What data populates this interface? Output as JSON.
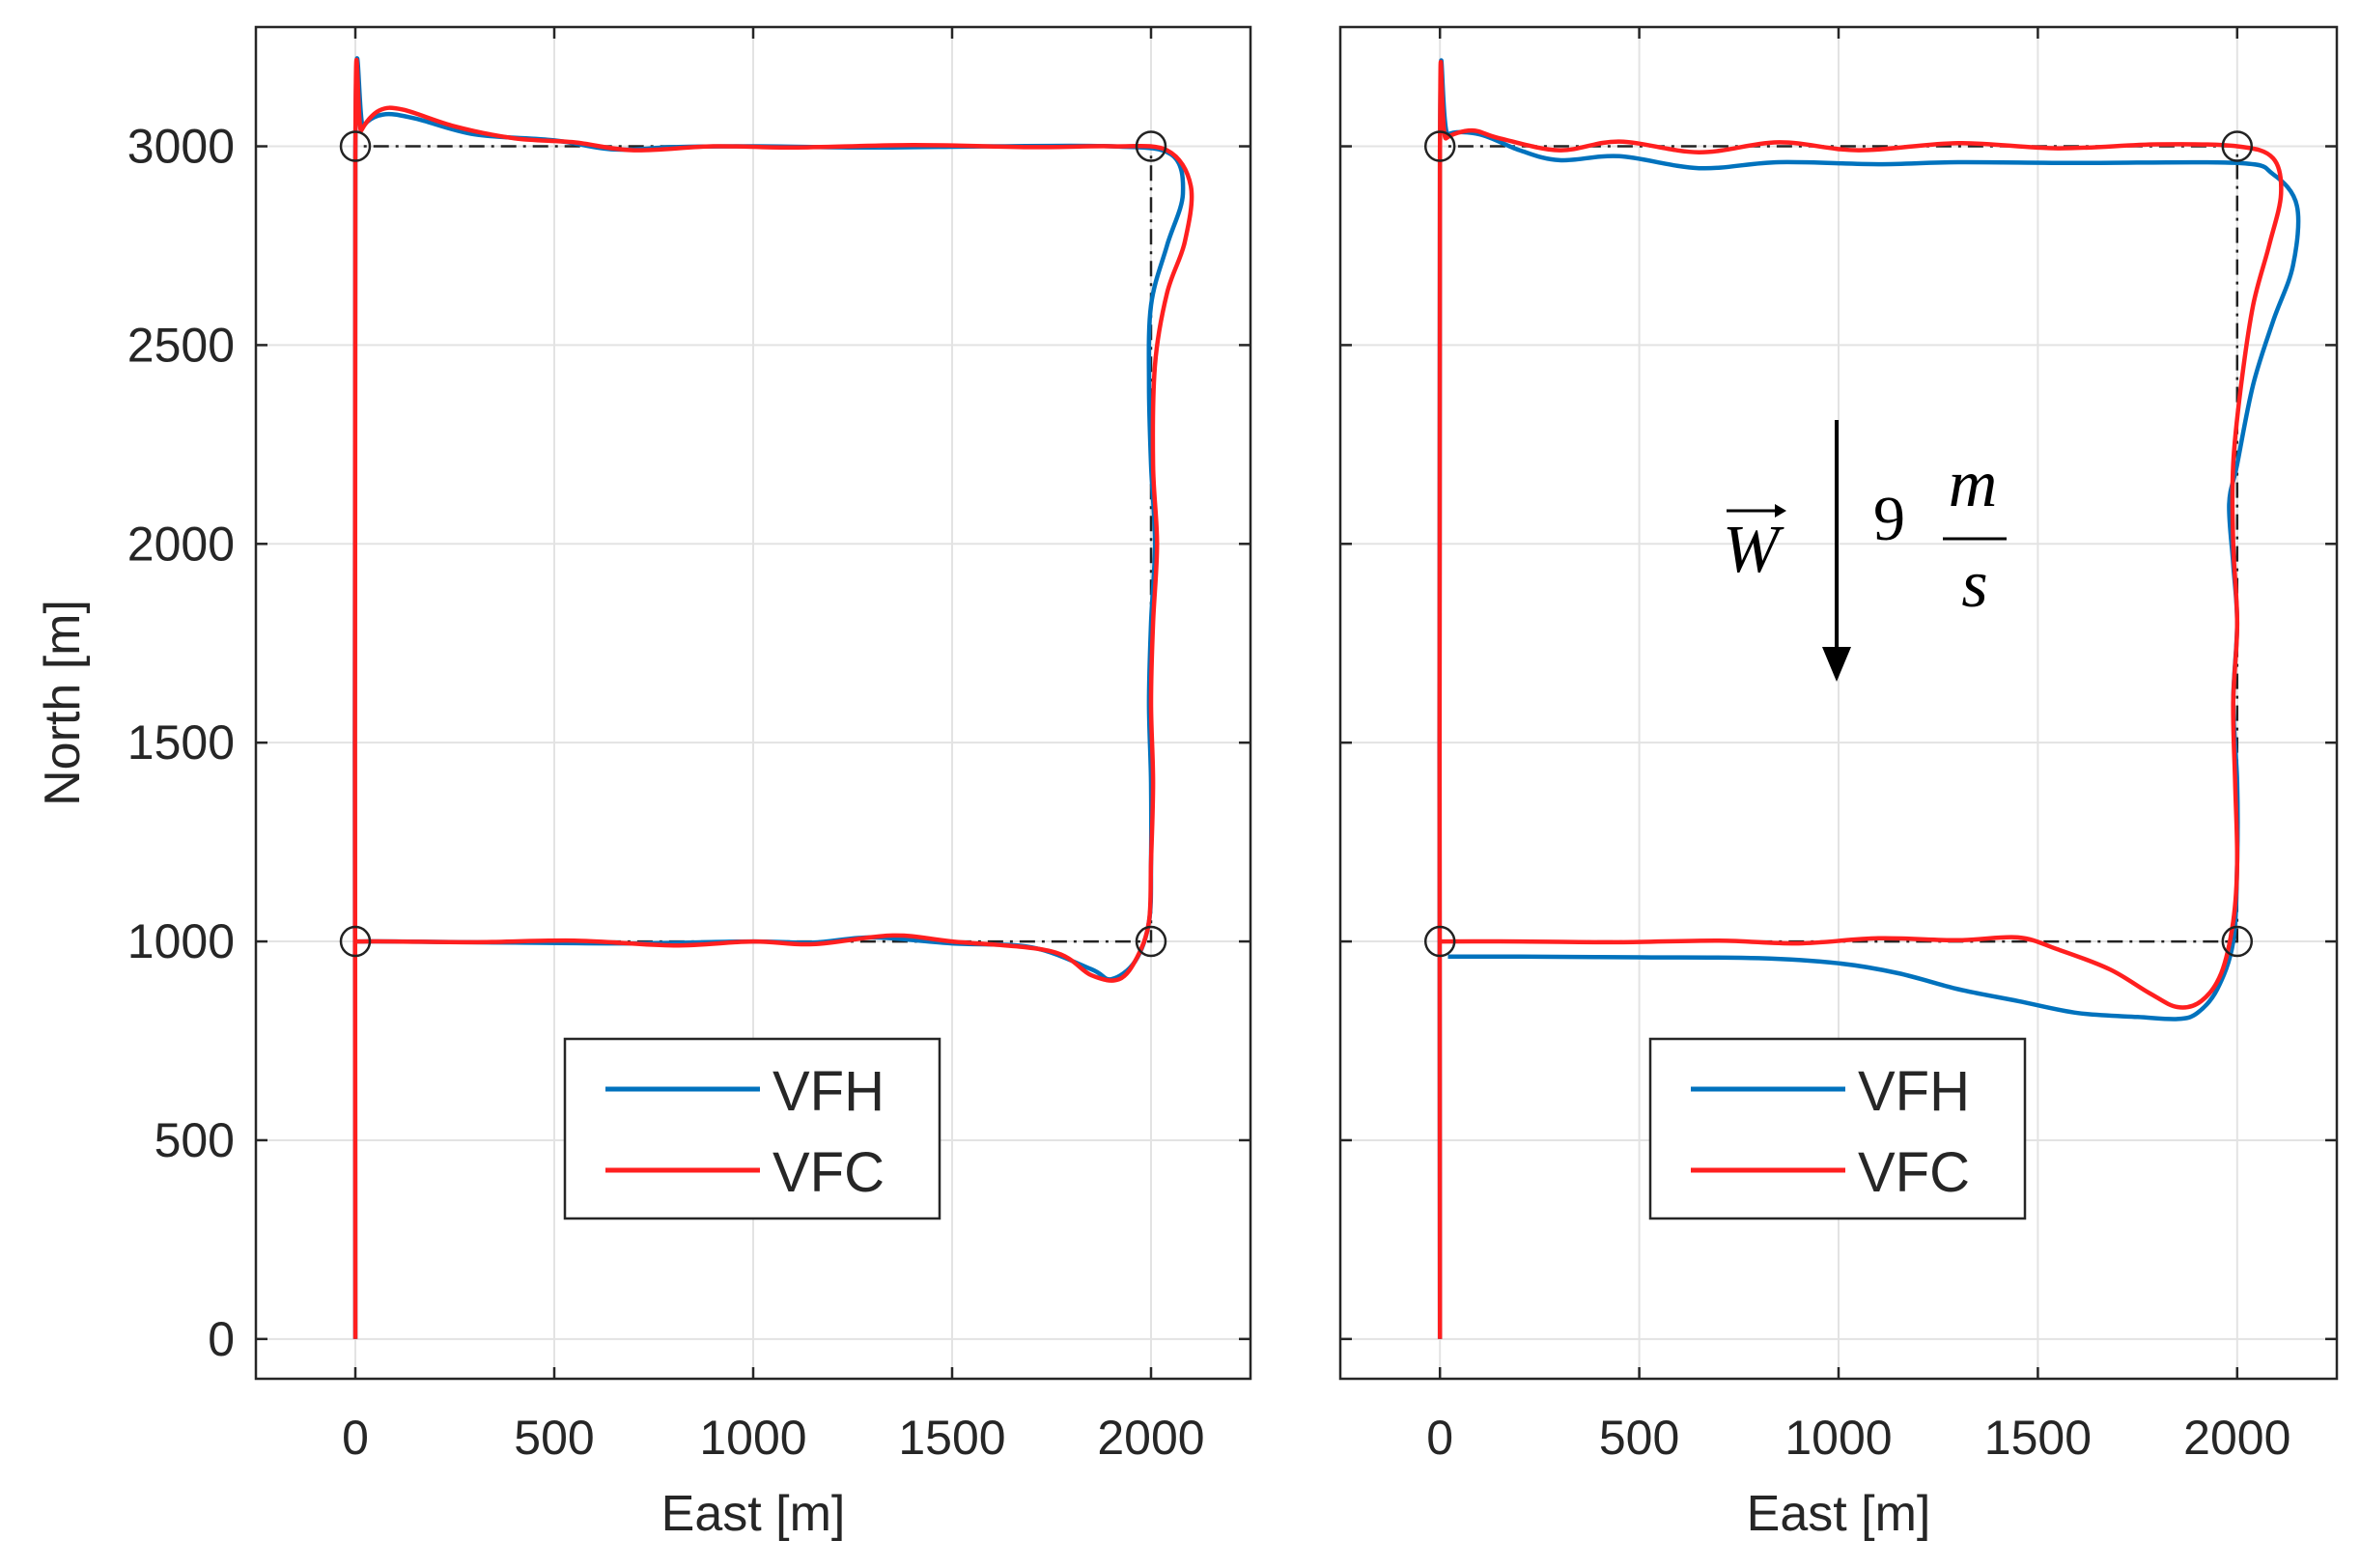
{
  "chart_data": [
    {
      "type": "line",
      "panel": "left",
      "xlabel": "East [m]",
      "ylabel": "North [m]",
      "xlim": [
        -250,
        2250
      ],
      "ylim": [
        -100,
        3300
      ],
      "xticks": [
        0,
        500,
        1000,
        1500,
        2000
      ],
      "xtick_labels": [
        "0",
        "500",
        "1000",
        "1500",
        "2000"
      ],
      "yticks": [
        0,
        500,
        1000,
        1500,
        2000,
        2500,
        3000
      ],
      "ytick_labels": [
        "0",
        "500",
        "1000",
        "1500",
        "2000",
        "2500",
        "3000"
      ],
      "grid": true,
      "legend": "bottom-center",
      "waypoints": [
        [
          0,
          1000
        ],
        [
          0,
          3000
        ],
        [
          2000,
          3000
        ],
        [
          2000,
          1000
        ]
      ],
      "reference_path": [
        [
          0,
          0
        ],
        [
          0,
          3000
        ],
        [
          2000,
          3000
        ],
        [
          2000,
          1000
        ],
        [
          0,
          1000
        ]
      ],
      "series": [
        {
          "name": "VFH",
          "color": "#0072BD",
          "points": [
            [
              0,
              0
            ],
            [
              0,
              2980
            ],
            [
              20,
              3050
            ],
            [
              70,
              3080
            ],
            [
              150,
              3070
            ],
            [
              300,
              3030
            ],
            [
              500,
              3015
            ],
            [
              650,
              2992
            ],
            [
              800,
              2998
            ],
            [
              1000,
              3000
            ],
            [
              1300,
              2997
            ],
            [
              1600,
              3000
            ],
            [
              1900,
              3000
            ],
            [
              2050,
              2980
            ],
            [
              2080,
              2880
            ],
            [
              2040,
              2750
            ],
            [
              2000,
              2600
            ],
            [
              1995,
              2400
            ],
            [
              2000,
              2200
            ],
            [
              2010,
              2000
            ],
            [
              2000,
              1800
            ],
            [
              1995,
              1600
            ],
            [
              2000,
              1400
            ],
            [
              2000,
              1200
            ],
            [
              1995,
              1050
            ],
            [
              1960,
              950
            ],
            [
              1900,
              905
            ],
            [
              1850,
              930
            ],
            [
              1700,
              985
            ],
            [
              1500,
              995
            ],
            [
              1300,
              1010
            ],
            [
              1150,
              997
            ],
            [
              1000,
              1000
            ],
            [
              700,
              995
            ],
            [
              400,
              997
            ],
            [
              100,
              1000
            ],
            [
              0,
              1000
            ]
          ]
        },
        {
          "name": "VFC",
          "color": "#FF1F1F",
          "points": [
            [
              0,
              0
            ],
            [
              0,
              2980
            ],
            [
              15,
              3040
            ],
            [
              60,
              3090
            ],
            [
              120,
              3092
            ],
            [
              250,
              3050
            ],
            [
              400,
              3020
            ],
            [
              550,
              3010
            ],
            [
              700,
              2990
            ],
            [
              900,
              3000
            ],
            [
              1100,
              2997
            ],
            [
              1400,
              3003
            ],
            [
              1700,
              2998
            ],
            [
              1900,
              3000
            ],
            [
              2040,
              2990
            ],
            [
              2100,
              2900
            ],
            [
              2085,
              2760
            ],
            [
              2040,
              2630
            ],
            [
              2010,
              2450
            ],
            [
              2005,
              2200
            ],
            [
              2015,
              2000
            ],
            [
              2005,
              1800
            ],
            [
              2000,
              1600
            ],
            [
              2005,
              1400
            ],
            [
              2000,
              1200
            ],
            [
              1995,
              1050
            ],
            [
              1965,
              960
            ],
            [
              1920,
              905
            ],
            [
              1850,
              915
            ],
            [
              1750,
              975
            ],
            [
              1500,
              1000
            ],
            [
              1350,
              1015
            ],
            [
              1150,
              993
            ],
            [
              1000,
              1000
            ],
            [
              800,
              990
            ],
            [
              550,
              1002
            ],
            [
              300,
              998
            ],
            [
              100,
              1000
            ],
            [
              0,
              1000
            ]
          ]
        }
      ]
    },
    {
      "type": "line",
      "panel": "right",
      "xlabel": "East [m]",
      "ylabel": "",
      "xlim": [
        -250,
        2250
      ],
      "ylim": [
        -100,
        3300
      ],
      "xticks": [
        0,
        500,
        1000,
        1500,
        2000
      ],
      "xtick_labels": [
        "0",
        "500",
        "1000",
        "1500",
        "2000"
      ],
      "yticks": [
        0,
        500,
        1000,
        1500,
        2000,
        2500,
        3000
      ],
      "grid": true,
      "legend": "bottom-center",
      "annotation": {
        "vector": "W",
        "magnitude": "9",
        "unit_numerator": "m",
        "unit_denominator": "s",
        "direction": "south",
        "arrow_from": [
          1000,
          2300
        ],
        "arrow_to": [
          1000,
          1650
        ]
      },
      "waypoints": [
        [
          0,
          1000
        ],
        [
          0,
          3000
        ],
        [
          2000,
          3000
        ],
        [
          2000,
          1000
        ]
      ],
      "reference_path": [
        [
          0,
          0
        ],
        [
          0,
          3000
        ],
        [
          2000,
          3000
        ],
        [
          2000,
          1000
        ],
        [
          0,
          1000
        ]
      ],
      "series": [
        {
          "name": "VFH",
          "color": "#0072BD",
          "points": [
            [
              0,
              0
            ],
            [
              0,
              2980
            ],
            [
              20,
              3030
            ],
            [
              100,
              3030
            ],
            [
              200,
              2990
            ],
            [
              300,
              2965
            ],
            [
              450,
              2975
            ],
            [
              650,
              2945
            ],
            [
              850,
              2960
            ],
            [
              1100,
              2955
            ],
            [
              1300,
              2960
            ],
            [
              1600,
              2958
            ],
            [
              2000,
              2958
            ],
            [
              2090,
              2930
            ],
            [
              2150,
              2850
            ],
            [
              2140,
              2700
            ],
            [
              2090,
              2560
            ],
            [
              2040,
              2400
            ],
            [
              2000,
              2200
            ],
            [
              1980,
              2100
            ],
            [
              1990,
              1950
            ],
            [
              2000,
              1800
            ],
            [
              1990,
              1600
            ],
            [
              2000,
              1400
            ],
            [
              2000,
              1200
            ],
            [
              1990,
              1000
            ],
            [
              1950,
              880
            ],
            [
              1900,
              820
            ],
            [
              1850,
              805
            ],
            [
              1750,
              810
            ],
            [
              1600,
              820
            ],
            [
              1450,
              850
            ],
            [
              1300,
              880
            ],
            [
              1150,
              920
            ],
            [
              1000,
              945
            ],
            [
              800,
              958
            ],
            [
              500,
              960
            ],
            [
              200,
              962
            ],
            [
              20,
              962
            ]
          ]
        },
        {
          "name": "VFC",
          "color": "#FF1F1F",
          "points": [
            [
              0,
              0
            ],
            [
              0,
              2980
            ],
            [
              15,
              3020
            ],
            [
              80,
              3040
            ],
            [
              150,
              3020
            ],
            [
              300,
              2990
            ],
            [
              450,
              3012
            ],
            [
              650,
              2985
            ],
            [
              850,
              3010
            ],
            [
              1050,
              2990
            ],
            [
              1300,
              3008
            ],
            [
              1550,
              2995
            ],
            [
              1800,
              3005
            ],
            [
              2000,
              3000
            ],
            [
              2090,
              2970
            ],
            [
              2110,
              2880
            ],
            [
              2080,
              2750
            ],
            [
              2040,
              2600
            ],
            [
              2010,
              2400
            ],
            [
              1990,
              2200
            ],
            [
              1990,
              2000
            ],
            [
              2000,
              1800
            ],
            [
              1990,
              1600
            ],
            [
              1995,
              1400
            ],
            [
              2000,
              1200
            ],
            [
              1990,
              1050
            ],
            [
              1960,
              920
            ],
            [
              1910,
              850
            ],
            [
              1850,
              835
            ],
            [
              1780,
              870
            ],
            [
              1680,
              930
            ],
            [
              1550,
              980
            ],
            [
              1450,
              1010
            ],
            [
              1300,
              1003
            ],
            [
              1100,
              1008
            ],
            [
              900,
              995
            ],
            [
              700,
              1002
            ],
            [
              450,
              998
            ],
            [
              200,
              1000
            ],
            [
              0,
              1000
            ]
          ]
        }
      ]
    }
  ]
}
